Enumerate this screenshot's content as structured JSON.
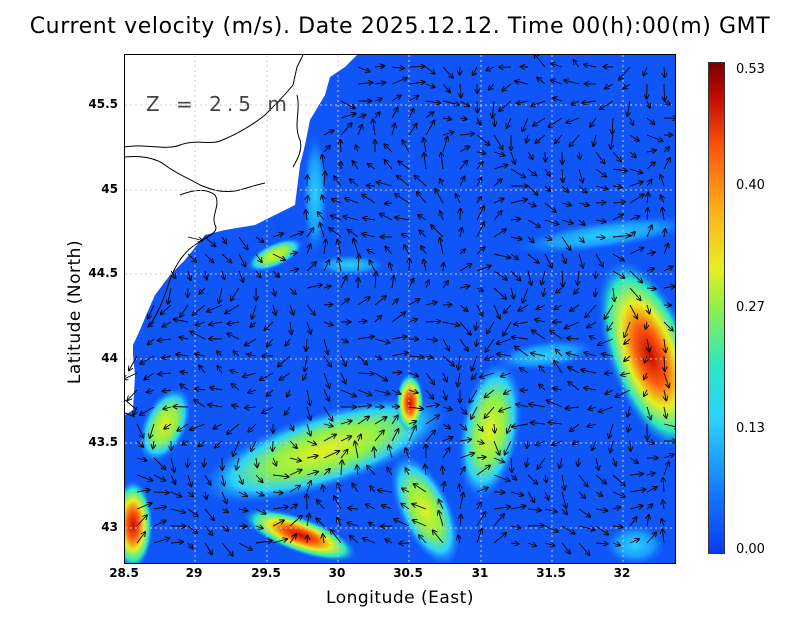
{
  "title": "Current velocity (m/s). Date 2025.12.12. Time 00(h):00(m) GMT",
  "depth_label": "Z = 2.5 m",
  "x_axis": {
    "label": "Longitude (East)",
    "ticks": [
      "28.5",
      "29",
      "29.5",
      "30",
      "30.5",
      "31",
      "31.5",
      "32"
    ]
  },
  "y_axis": {
    "label": "Latitude (North)",
    "ticks": [
      "45.5",
      "45",
      "44.5",
      "44",
      "43.5",
      "43"
    ]
  },
  "colorbar": {
    "ticks": [
      "0.53",
      "0.40",
      "0.27",
      "0.13",
      "0.00"
    ]
  },
  "colors": {
    "low": "#0a3af5",
    "mid": "#2ad1ff",
    "high": "#c40a05",
    "land": "#ffffff",
    "grid": "#cccccc"
  }
}
